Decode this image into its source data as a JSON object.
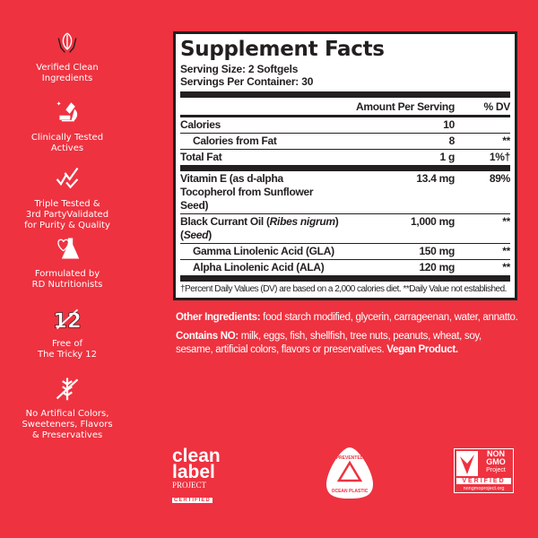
{
  "colors": {
    "background": "#ee3240",
    "panel": "#ffffff",
    "ink": "#231f20"
  },
  "features": [
    {
      "icon": "hands-leaf-icon",
      "lines": [
        "Verified Clean",
        "Ingredients"
      ]
    },
    {
      "icon": "microscope-icon",
      "lines": [
        "Clinically Tested",
        "Actives"
      ]
    },
    {
      "icon": "checkmarks-icon",
      "lines": [
        "Triple Tested &",
        "3rd PartyValidated",
        "for Purity & Quality"
      ]
    },
    {
      "icon": "heart-flask-icon",
      "lines": [
        "Formulated by",
        "RD Nutritionists"
      ]
    },
    {
      "icon": "crossed-12-icon",
      "lines": [
        "Free of",
        "The Tricky 12"
      ]
    },
    {
      "icon": "crossed-wheat-icon",
      "lines": [
        "No Artifical Colors,",
        "Sweeteners, Flavors",
        "& Preservatives"
      ]
    }
  ],
  "facts": {
    "title": "Supplement Facts",
    "serving_size": "Serving Size: 2 Softgels",
    "servings_per_container": "Servings Per Container: 30",
    "header": {
      "amount": "Amount Per Serving",
      "dv": "% DV"
    },
    "rows": [
      {
        "name": "Calories",
        "amount": "10",
        "dv": ""
      },
      {
        "name": "Calories from Fat",
        "amount": "8",
        "dv": "**"
      },
      {
        "name": "Total Fat",
        "amount": "1 g",
        "dv": "1%†"
      },
      {
        "name": "Vitamin E (as d-alpha Tocopherol from Sunflower Seed)",
        "amount": "13.4 mg",
        "dv": "89%"
      },
      {
        "name_pre": "Black Currant Oil (",
        "name_italic": "Ribes nigrum",
        "name_mid": ") (",
        "name_italic2": "Seed",
        "name_post": ")",
        "amount": "1,000 mg",
        "dv": "**"
      },
      {
        "name": "Gamma Linolenic Acid (GLA)",
        "amount": "150 mg",
        "dv": "**"
      },
      {
        "name": "Alpha Linolenic Acid (ALA)",
        "amount": "120 mg",
        "dv": "**"
      }
    ],
    "footnote": "†Percent Daily Values (DV) are based on a 2,000 calories diet. **Daily Value not established."
  },
  "other_ingredients": {
    "label": "Other Ingredients:",
    "text": " food starch modified, glycerin, carrageenan, water, annatto."
  },
  "contains_no": {
    "label": "Contains NO:",
    "text": " milk, eggs, fish, shellfish, tree nuts, peanuts, wheat, soy, sesame, artificial colors, flavors or preservatives. ",
    "vegan": "Vegan Product."
  },
  "logos": {
    "clean_label": [
      "clean",
      "label",
      "PROJECT",
      "CERTIFIED"
    ],
    "ocean": [
      "PREVENTED",
      "OCEAN PLASTIC"
    ],
    "non_gmo": [
      "NON",
      "GMO",
      "Project",
      "VERIFIED",
      "nongmoproject.org"
    ]
  }
}
